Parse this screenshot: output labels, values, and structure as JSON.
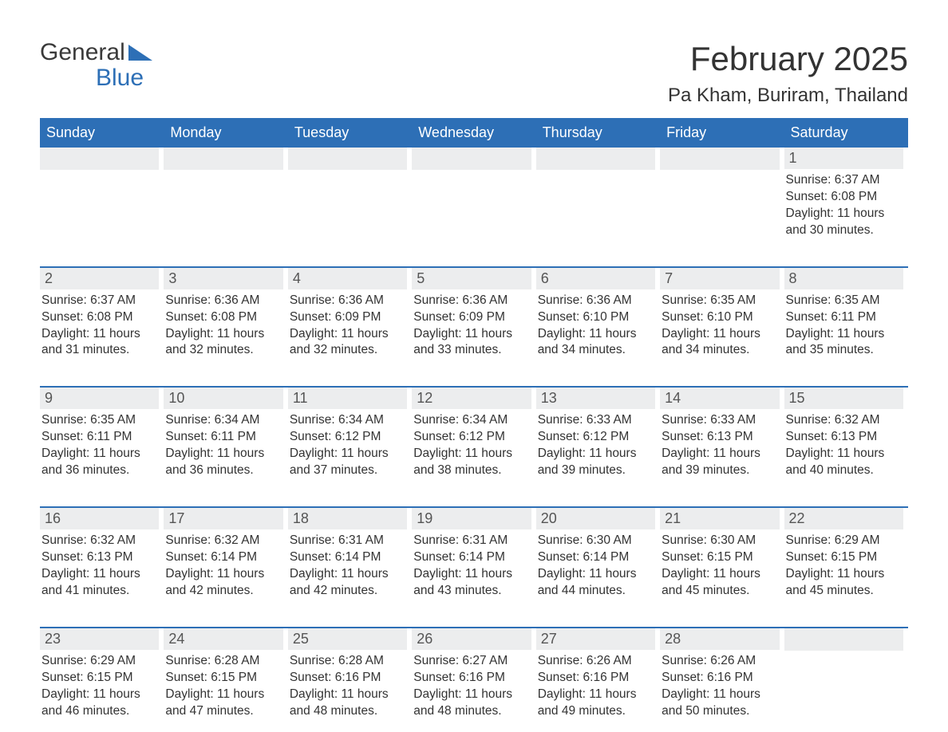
{
  "logo": {
    "word1": "General",
    "word2": "Blue"
  },
  "title": "February 2025",
  "subtitle": "Pa Kham, Buriram, Thailand",
  "colors": {
    "header_bg": "#2d6fb6",
    "header_text": "#ffffff",
    "daynum_bg": "#ecedee",
    "border": "#2d6fb6",
    "body_text": "#333333",
    "logo_blue": "#2d6fb6",
    "logo_gray": "#3a3a3a",
    "background": "#ffffff"
  },
  "fontsizes": {
    "title": 42,
    "subtitle": 24,
    "weekday": 18,
    "daynum": 18,
    "daydata": 15.5
  },
  "weekdays": [
    "Sunday",
    "Monday",
    "Tuesday",
    "Wednesday",
    "Thursday",
    "Friday",
    "Saturday"
  ],
  "labels": {
    "sunrise": "Sunrise:",
    "sunset": "Sunset:",
    "daylight": "Daylight:"
  },
  "weeks": [
    [
      null,
      null,
      null,
      null,
      null,
      null,
      {
        "n": "1",
        "sunrise": "6:37 AM",
        "sunset": "6:08 PM",
        "daylight": "11 hours and 30 minutes."
      }
    ],
    [
      {
        "n": "2",
        "sunrise": "6:37 AM",
        "sunset": "6:08 PM",
        "daylight": "11 hours and 31 minutes."
      },
      {
        "n": "3",
        "sunrise": "6:36 AM",
        "sunset": "6:08 PM",
        "daylight": "11 hours and 32 minutes."
      },
      {
        "n": "4",
        "sunrise": "6:36 AM",
        "sunset": "6:09 PM",
        "daylight": "11 hours and 32 minutes."
      },
      {
        "n": "5",
        "sunrise": "6:36 AM",
        "sunset": "6:09 PM",
        "daylight": "11 hours and 33 minutes."
      },
      {
        "n": "6",
        "sunrise": "6:36 AM",
        "sunset": "6:10 PM",
        "daylight": "11 hours and 34 minutes."
      },
      {
        "n": "7",
        "sunrise": "6:35 AM",
        "sunset": "6:10 PM",
        "daylight": "11 hours and 34 minutes."
      },
      {
        "n": "8",
        "sunrise": "6:35 AM",
        "sunset": "6:11 PM",
        "daylight": "11 hours and 35 minutes."
      }
    ],
    [
      {
        "n": "9",
        "sunrise": "6:35 AM",
        "sunset": "6:11 PM",
        "daylight": "11 hours and 36 minutes."
      },
      {
        "n": "10",
        "sunrise": "6:34 AM",
        "sunset": "6:11 PM",
        "daylight": "11 hours and 36 minutes."
      },
      {
        "n": "11",
        "sunrise": "6:34 AM",
        "sunset": "6:12 PM",
        "daylight": "11 hours and 37 minutes."
      },
      {
        "n": "12",
        "sunrise": "6:34 AM",
        "sunset": "6:12 PM",
        "daylight": "11 hours and 38 minutes."
      },
      {
        "n": "13",
        "sunrise": "6:33 AM",
        "sunset": "6:12 PM",
        "daylight": "11 hours and 39 minutes."
      },
      {
        "n": "14",
        "sunrise": "6:33 AM",
        "sunset": "6:13 PM",
        "daylight": "11 hours and 39 minutes."
      },
      {
        "n": "15",
        "sunrise": "6:32 AM",
        "sunset": "6:13 PM",
        "daylight": "11 hours and 40 minutes."
      }
    ],
    [
      {
        "n": "16",
        "sunrise": "6:32 AM",
        "sunset": "6:13 PM",
        "daylight": "11 hours and 41 minutes."
      },
      {
        "n": "17",
        "sunrise": "6:32 AM",
        "sunset": "6:14 PM",
        "daylight": "11 hours and 42 minutes."
      },
      {
        "n": "18",
        "sunrise": "6:31 AM",
        "sunset": "6:14 PM",
        "daylight": "11 hours and 42 minutes."
      },
      {
        "n": "19",
        "sunrise": "6:31 AM",
        "sunset": "6:14 PM",
        "daylight": "11 hours and 43 minutes."
      },
      {
        "n": "20",
        "sunrise": "6:30 AM",
        "sunset": "6:14 PM",
        "daylight": "11 hours and 44 minutes."
      },
      {
        "n": "21",
        "sunrise": "6:30 AM",
        "sunset": "6:15 PM",
        "daylight": "11 hours and 45 minutes."
      },
      {
        "n": "22",
        "sunrise": "6:29 AM",
        "sunset": "6:15 PM",
        "daylight": "11 hours and 45 minutes."
      }
    ],
    [
      {
        "n": "23",
        "sunrise": "6:29 AM",
        "sunset": "6:15 PM",
        "daylight": "11 hours and 46 minutes."
      },
      {
        "n": "24",
        "sunrise": "6:28 AM",
        "sunset": "6:15 PM",
        "daylight": "11 hours and 47 minutes."
      },
      {
        "n": "25",
        "sunrise": "6:28 AM",
        "sunset": "6:16 PM",
        "daylight": "11 hours and 48 minutes."
      },
      {
        "n": "26",
        "sunrise": "6:27 AM",
        "sunset": "6:16 PM",
        "daylight": "11 hours and 48 minutes."
      },
      {
        "n": "27",
        "sunrise": "6:26 AM",
        "sunset": "6:16 PM",
        "daylight": "11 hours and 49 minutes."
      },
      {
        "n": "28",
        "sunrise": "6:26 AM",
        "sunset": "6:16 PM",
        "daylight": "11 hours and 50 minutes."
      },
      null
    ]
  ]
}
